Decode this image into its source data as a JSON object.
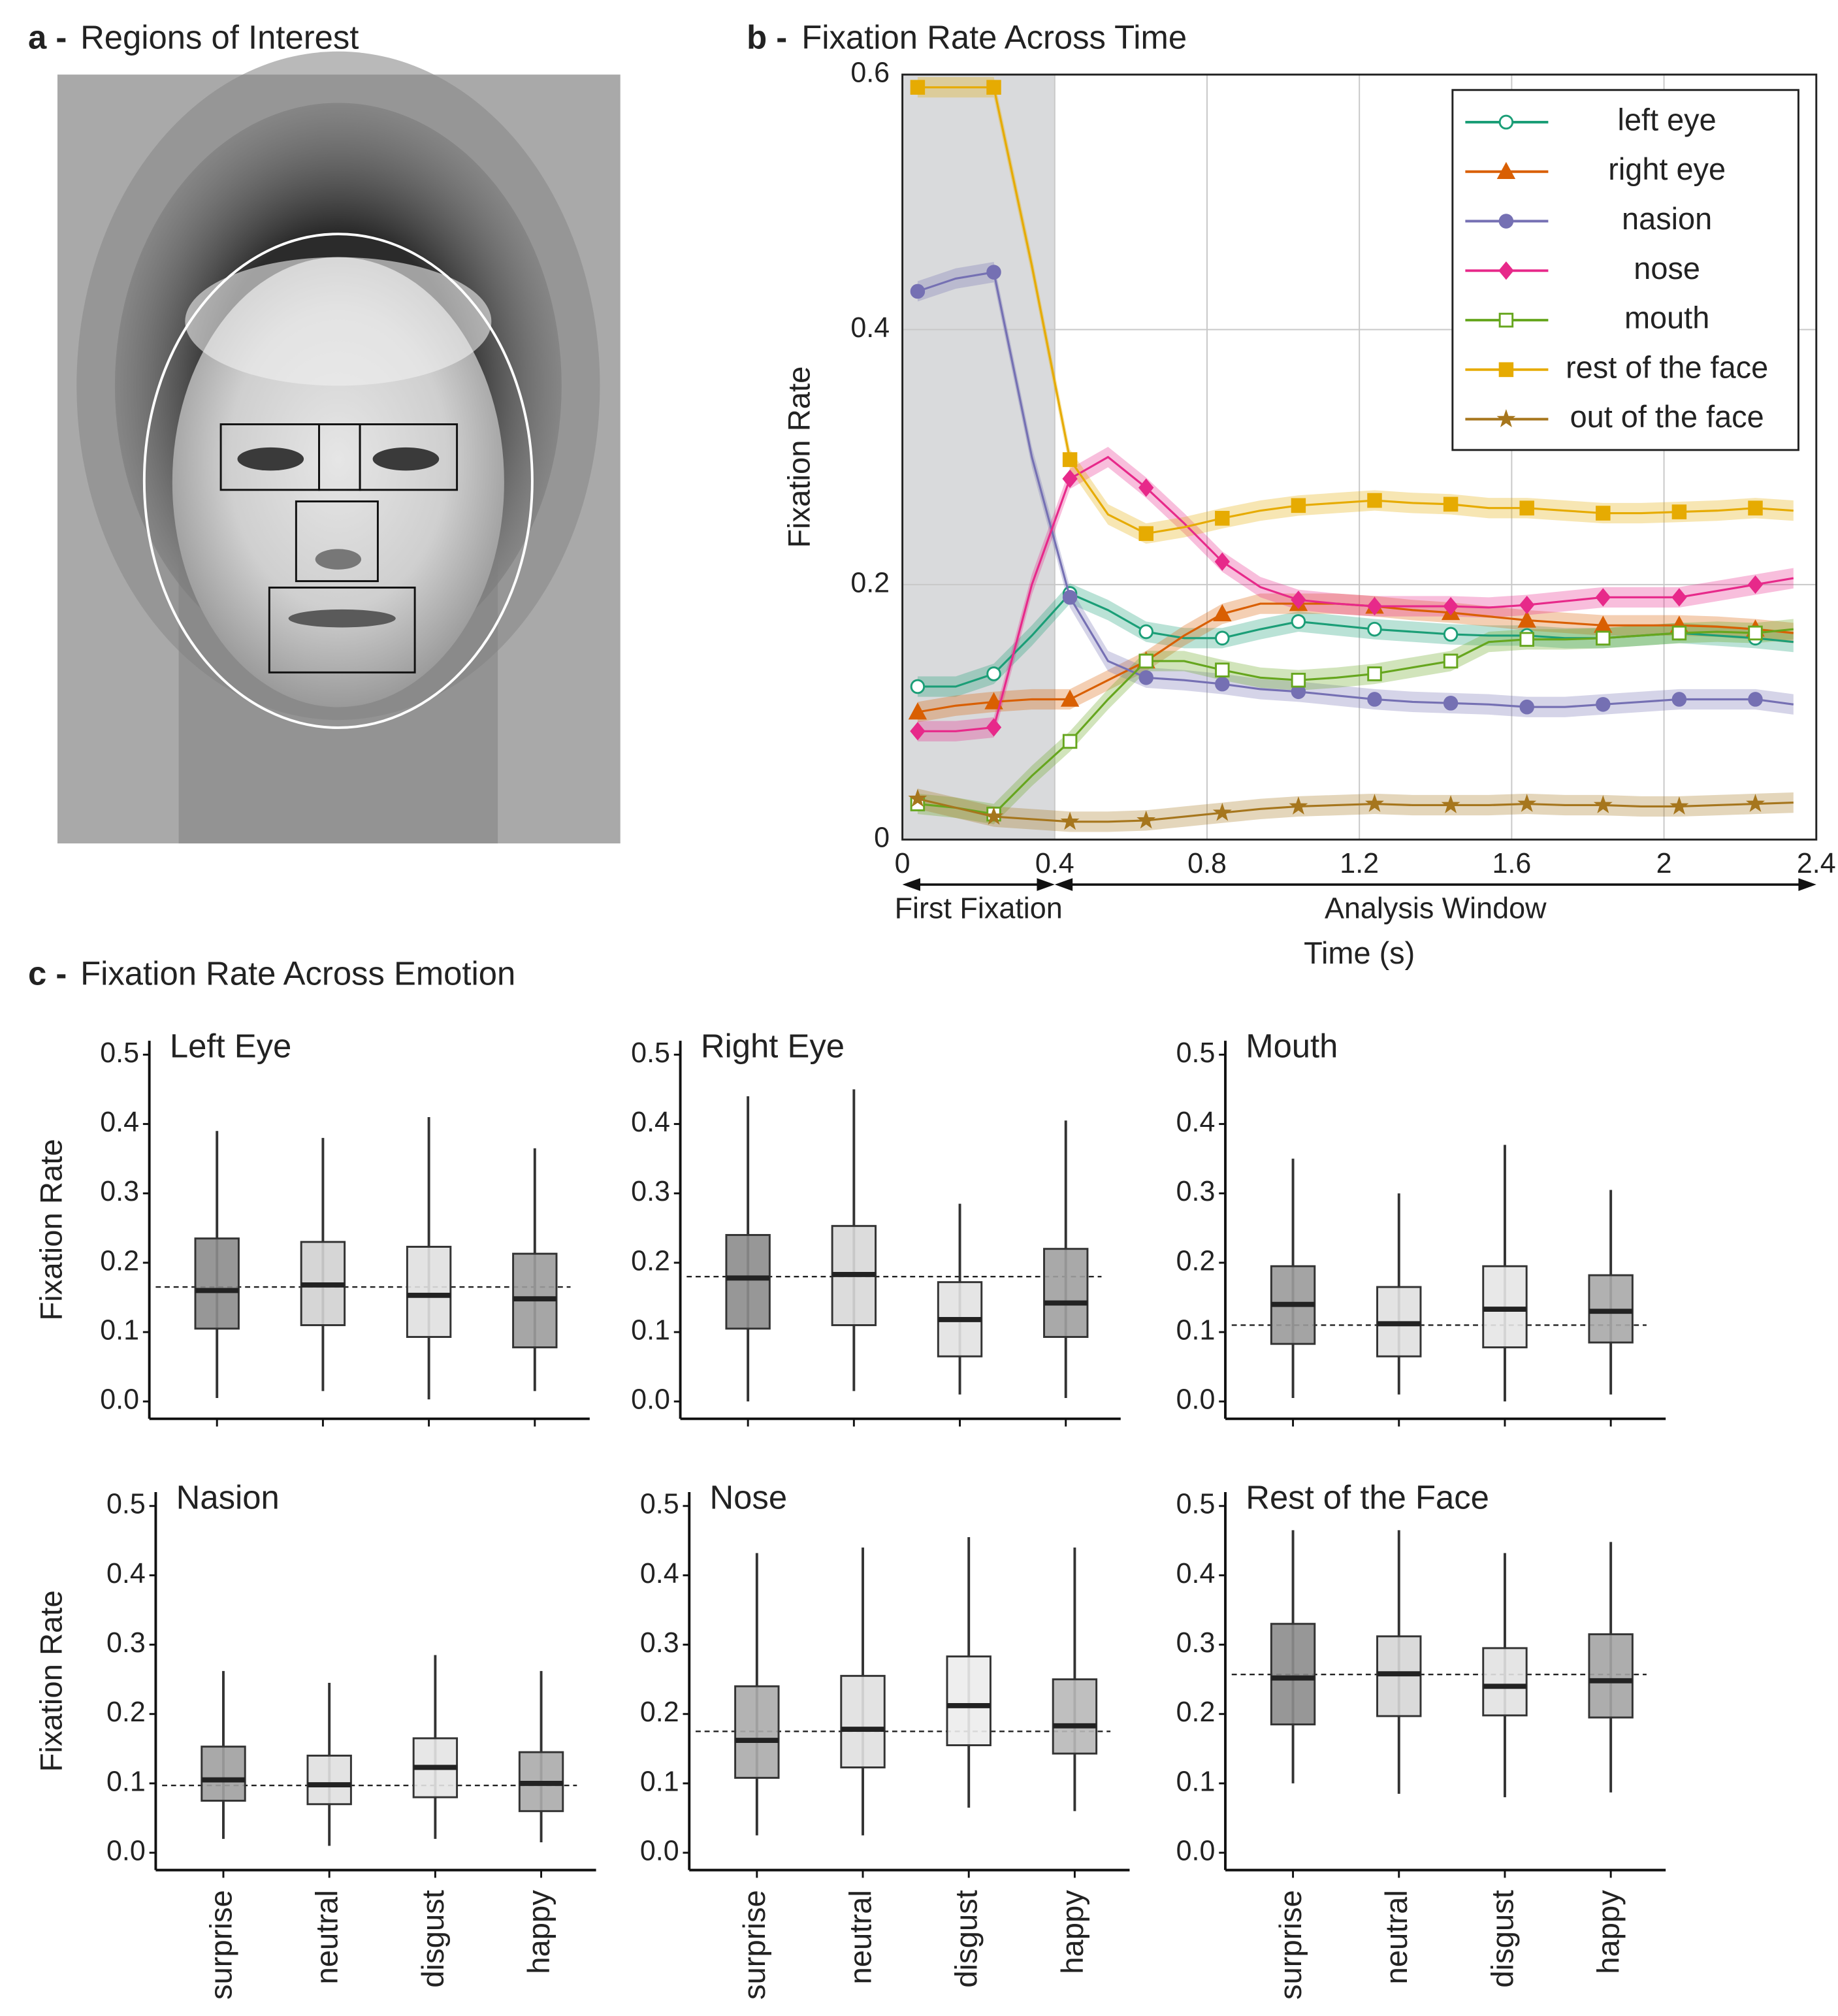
{
  "panel_a": {
    "label": "a -",
    "title": "Regions of Interest"
  },
  "panel_c": {
    "label": "c -",
    "title": "Fixation Rate Across Emotion"
  },
  "chart_data": [
    {
      "type": "line",
      "panel_label": "b -",
      "title": "Fixation Rate Across Time",
      "xlabel": "Time (s)",
      "ylabel": "Fixation Rate",
      "xlim": [
        0,
        2.4
      ],
      "ylim": [
        0,
        0.6
      ],
      "xticks": [
        0,
        0.4,
        0.8,
        1.2,
        1.6,
        2,
        2.4
      ],
      "yticks": [
        0,
        0.2,
        0.4,
        0.6
      ],
      "grid": true,
      "legend": "upper right",
      "highlight_xlim": [
        0,
        0.4
      ],
      "ribbon": 0.008,
      "markevery": 2,
      "annotations": [
        {
          "text": "First Fixation",
          "from": 0,
          "to": 0.4
        },
        {
          "text": "Analysis Window",
          "from": 0.4,
          "to": 2.4
        }
      ],
      "x": [
        0.04,
        0.14,
        0.24,
        0.34,
        0.44,
        0.54,
        0.64,
        0.74,
        0.84,
        0.94,
        1.04,
        1.14,
        1.24,
        1.34,
        1.44,
        1.54,
        1.64,
        1.74,
        1.84,
        1.94,
        2.04,
        2.14,
        2.24,
        2.34
      ],
      "series": [
        {
          "name": "left eye",
          "color": "#1b9e77",
          "marker": "circle-open",
          "values": [
            0.12,
            0.12,
            0.13,
            0.16,
            0.193,
            0.18,
            0.163,
            0.158,
            0.158,
            0.165,
            0.171,
            0.168,
            0.165,
            0.163,
            0.161,
            0.16,
            0.16,
            0.158,
            0.158,
            0.16,
            0.162,
            0.16,
            0.158,
            0.155
          ]
        },
        {
          "name": "right eye",
          "color": "#d95f02",
          "marker": "triangle",
          "values": [
            0.1,
            0.105,
            0.108,
            0.11,
            0.11,
            0.125,
            0.14,
            0.16,
            0.177,
            0.185,
            0.185,
            0.185,
            0.183,
            0.18,
            0.178,
            0.175,
            0.172,
            0.17,
            0.168,
            0.168,
            0.168,
            0.167,
            0.165,
            0.162
          ]
        },
        {
          "name": "nasion",
          "color": "#7570b3",
          "marker": "circle",
          "values": [
            0.43,
            0.44,
            0.445,
            0.3,
            0.19,
            0.14,
            0.127,
            0.125,
            0.122,
            0.118,
            0.116,
            0.113,
            0.11,
            0.108,
            0.107,
            0.106,
            0.104,
            0.104,
            0.106,
            0.108,
            0.11,
            0.11,
            0.11,
            0.106
          ]
        },
        {
          "name": "nose",
          "color": "#e7298a",
          "marker": "diamond",
          "values": [
            0.085,
            0.085,
            0.088,
            0.2,
            0.283,
            0.3,
            0.276,
            0.248,
            0.218,
            0.198,
            0.188,
            0.185,
            0.183,
            0.183,
            0.183,
            0.182,
            0.184,
            0.187,
            0.19,
            0.19,
            0.19,
            0.195,
            0.2,
            0.205
          ]
        },
        {
          "name": "mouth",
          "color": "#66a61e",
          "marker": "square-open",
          "values": [
            0.028,
            0.025,
            0.02,
            0.05,
            0.077,
            0.11,
            0.14,
            0.14,
            0.133,
            0.127,
            0.125,
            0.127,
            0.13,
            0.135,
            0.14,
            0.155,
            0.157,
            0.157,
            0.158,
            0.16,
            0.162,
            0.163,
            0.162,
            0.165
          ]
        },
        {
          "name": "rest of the face",
          "color": "#e6ab02",
          "marker": "square",
          "values": [
            0.59,
            0.59,
            0.59,
            0.45,
            0.298,
            0.255,
            0.24,
            0.245,
            0.252,
            0.258,
            0.262,
            0.264,
            0.266,
            0.264,
            0.263,
            0.26,
            0.26,
            0.258,
            0.256,
            0.256,
            0.257,
            0.258,
            0.26,
            0.258
          ]
        },
        {
          "name": "out of the face",
          "color": "#a6761d",
          "marker": "star",
          "values": [
            0.032,
            0.025,
            0.018,
            0.016,
            0.014,
            0.014,
            0.015,
            0.018,
            0.021,
            0.024,
            0.026,
            0.027,
            0.028,
            0.027,
            0.027,
            0.027,
            0.028,
            0.027,
            0.027,
            0.026,
            0.026,
            0.027,
            0.028,
            0.029
          ]
        }
      ]
    },
    {
      "type": "box",
      "title": "Left Eye",
      "ylabel": "Fixation Rate",
      "xticklabels": false,
      "categories": [
        "surprise",
        "neutral",
        "disgust",
        "happy"
      ],
      "colors": [
        "#8c8c8c",
        "#d2d2d2",
        "#e0e0e0",
        "#9c9c9c"
      ],
      "ylim": [
        -0.025,
        0.52
      ],
      "yticks": [
        {
          "value": 0,
          "label": "0.0"
        },
        0.1,
        0.2,
        0.3,
        0.4,
        0.5
      ],
      "reference": 0.165,
      "boxes": [
        {
          "low": 0.005,
          "q1": 0.105,
          "median": 0.16,
          "q3": 0.235,
          "high": 0.39
        },
        {
          "low": 0.015,
          "q1": 0.11,
          "median": 0.168,
          "q3": 0.23,
          "high": 0.38
        },
        {
          "low": 0.003,
          "q1": 0.093,
          "median": 0.153,
          "q3": 0.223,
          "high": 0.41
        },
        {
          "low": 0.015,
          "q1": 0.078,
          "median": 0.148,
          "q3": 0.213,
          "high": 0.365
        }
      ]
    },
    {
      "type": "box",
      "title": "Right Eye",
      "xticklabels": false,
      "categories": [
        "surprise",
        "neutral",
        "disgust",
        "happy"
      ],
      "colors": [
        "#8c8c8c",
        "#d8d8d8",
        "#e2e2e2",
        "#a0a0a0"
      ],
      "ylim": [
        -0.025,
        0.52
      ],
      "yticks": [
        {
          "value": 0,
          "label": "0.0"
        },
        0.1,
        0.2,
        0.3,
        0.4,
        0.5
      ],
      "reference": 0.18,
      "boxes": [
        {
          "low": 0.0,
          "q1": 0.105,
          "median": 0.178,
          "q3": 0.24,
          "high": 0.44
        },
        {
          "low": 0.015,
          "q1": 0.11,
          "median": 0.183,
          "q3": 0.253,
          "high": 0.45
        },
        {
          "low": 0.01,
          "q1": 0.065,
          "median": 0.118,
          "q3": 0.172,
          "high": 0.285
        },
        {
          "low": 0.005,
          "q1": 0.093,
          "median": 0.142,
          "q3": 0.22,
          "high": 0.405
        }
      ]
    },
    {
      "type": "box",
      "title": "Mouth",
      "xticklabels": false,
      "categories": [
        "surprise",
        "neutral",
        "disgust",
        "happy"
      ],
      "colors": [
        "#9a9a9a",
        "#e0e0e0",
        "#e6e6e6",
        "#a8a8a8"
      ],
      "ylim": [
        -0.025,
        0.52
      ],
      "yticks": [
        {
          "value": 0,
          "label": "0.0"
        },
        0.1,
        0.2,
        0.3,
        0.4,
        0.5
      ],
      "reference": 0.11,
      "boxes": [
        {
          "low": 0.005,
          "q1": 0.083,
          "median": 0.14,
          "q3": 0.195,
          "high": 0.35
        },
        {
          "low": 0.01,
          "q1": 0.065,
          "median": 0.112,
          "q3": 0.165,
          "high": 0.3
        },
        {
          "low": 0.0,
          "q1": 0.078,
          "median": 0.133,
          "q3": 0.195,
          "high": 0.37
        },
        {
          "low": 0.01,
          "q1": 0.085,
          "median": 0.13,
          "q3": 0.182,
          "high": 0.305
        }
      ]
    },
    {
      "type": "box",
      "title": "Nasion",
      "ylabel": "Fixation Rate",
      "xticklabels": true,
      "categories": [
        "surprise",
        "neutral",
        "disgust",
        "happy"
      ],
      "colors": [
        "#a0a0a0",
        "#e0e0e0",
        "#e4e4e4",
        "#ababab"
      ],
      "ylim": [
        -0.025,
        0.52
      ],
      "yticks": [
        {
          "value": 0,
          "label": "0.0"
        },
        0.1,
        0.2,
        0.3,
        0.4,
        0.5
      ],
      "reference": 0.097,
      "boxes": [
        {
          "low": 0.02,
          "q1": 0.075,
          "median": 0.105,
          "q3": 0.153,
          "high": 0.262
        },
        {
          "low": 0.01,
          "q1": 0.07,
          "median": 0.098,
          "q3": 0.14,
          "high": 0.245
        },
        {
          "low": 0.02,
          "q1": 0.08,
          "median": 0.123,
          "q3": 0.165,
          "high": 0.285
        },
        {
          "low": 0.015,
          "q1": 0.06,
          "median": 0.1,
          "q3": 0.145,
          "high": 0.262
        }
      ]
    },
    {
      "type": "box",
      "title": "Nose",
      "xticklabels": true,
      "categories": [
        "surprise",
        "neutral",
        "disgust",
        "happy"
      ],
      "colors": [
        "#ababab",
        "#e0e0e0",
        "#ececec",
        "#b8b8b8"
      ],
      "ylim": [
        -0.025,
        0.52
      ],
      "yticks": [
        {
          "value": 0,
          "label": "0.0"
        },
        0.1,
        0.2,
        0.3,
        0.4,
        0.5
      ],
      "reference": 0.175,
      "boxes": [
        {
          "low": 0.025,
          "q1": 0.108,
          "median": 0.162,
          "q3": 0.24,
          "high": 0.432
        },
        {
          "low": 0.025,
          "q1": 0.123,
          "median": 0.178,
          "q3": 0.255,
          "high": 0.44
        },
        {
          "low": 0.065,
          "q1": 0.155,
          "median": 0.212,
          "q3": 0.283,
          "high": 0.455
        },
        {
          "low": 0.06,
          "q1": 0.143,
          "median": 0.183,
          "q3": 0.25,
          "high": 0.44
        }
      ]
    },
    {
      "type": "box",
      "title": "Rest of the Face",
      "xticklabels": true,
      "categories": [
        "surprise",
        "neutral",
        "disgust",
        "happy"
      ],
      "colors": [
        "#8c8c8c",
        "#d6d6d6",
        "#e2e2e2",
        "#a4a4a4"
      ],
      "ylim": [
        -0.025,
        0.52
      ],
      "yticks": [
        {
          "value": 0,
          "label": "0.0"
        },
        0.1,
        0.2,
        0.3,
        0.4,
        0.5
      ],
      "reference": 0.257,
      "boxes": [
        {
          "low": 0.1,
          "q1": 0.185,
          "median": 0.252,
          "q3": 0.33,
          "high": 0.465
        },
        {
          "low": 0.085,
          "q1": 0.197,
          "median": 0.258,
          "q3": 0.312,
          "high": 0.465
        },
        {
          "low": 0.08,
          "q1": 0.198,
          "median": 0.24,
          "q3": 0.295,
          "high": 0.432
        },
        {
          "low": 0.087,
          "q1": 0.195,
          "median": 0.248,
          "q3": 0.315,
          "high": 0.448
        }
      ]
    }
  ]
}
